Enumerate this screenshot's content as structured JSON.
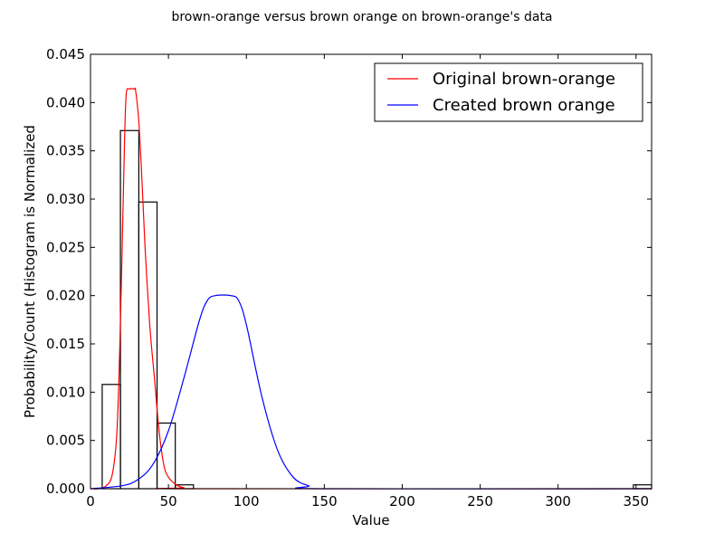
{
  "chart_data": {
    "type": "histogram-with-curves",
    "title": "brown-orange versus brown orange on brown-orange's data",
    "xlabel": "Value",
    "ylabel": "Probability/Count (Histogram is Normalized",
    "xlim": [
      0,
      360
    ],
    "ylim": [
      0,
      0.045
    ],
    "x_ticks": [
      0,
      50,
      100,
      150,
      200,
      250,
      300,
      350
    ],
    "y_ticks": [
      0.0,
      0.005,
      0.01,
      0.015,
      0.02,
      0.025,
      0.03,
      0.035,
      0.04,
      0.045
    ],
    "y_tick_labels": [
      "0.000",
      "0.005",
      "0.010",
      "0.015",
      "0.020",
      "0.025",
      "0.030",
      "0.035",
      "0.040",
      "0.045"
    ],
    "legend_position": "top-right",
    "histogram": {
      "bins": [
        {
          "x0": 7.5,
          "x1": 19.2,
          "value": 0.0108
        },
        {
          "x0": 19.2,
          "x1": 31.0,
          "value": 0.0371
        },
        {
          "x0": 31.0,
          "x1": 42.7,
          "value": 0.0297
        },
        {
          "x0": 42.7,
          "x1": 54.4,
          "value": 0.0068
        },
        {
          "x0": 54.4,
          "x1": 66.1,
          "value": 0.0004
        },
        {
          "x0": 348.3,
          "x1": 360.0,
          "value": 0.0004
        }
      ],
      "edge_color": "#000000"
    },
    "series": [
      {
        "name": "Original brown-orange",
        "color": "#ff0000",
        "points": [
          [
            0,
            0.0
          ],
          [
            5,
            0.0
          ],
          [
            10,
            0.0003
          ],
          [
            14,
            0.0015
          ],
          [
            17,
            0.006
          ],
          [
            19,
            0.016
          ],
          [
            21,
            0.03
          ],
          [
            22,
            0.037
          ],
          [
            23,
            0.041
          ],
          [
            25,
            0.0414
          ],
          [
            28,
            0.0414
          ],
          [
            29,
            0.0412
          ],
          [
            31,
            0.038
          ],
          [
            33,
            0.032
          ],
          [
            35,
            0.025
          ],
          [
            38,
            0.017
          ],
          [
            41,
            0.0115
          ],
          [
            44,
            0.006
          ],
          [
            47,
            0.0025
          ],
          [
            50,
            0.0012
          ],
          [
            55,
            0.0004
          ],
          [
            60,
            0.0001
          ],
          [
            65,
            0.0
          ],
          [
            360,
            0.0
          ]
        ]
      },
      {
        "name": "Created brown orange",
        "color": "#0000ff",
        "points": [
          [
            0,
            0.0
          ],
          [
            20,
            0.0003
          ],
          [
            30,
            0.0009
          ],
          [
            40,
            0.0025
          ],
          [
            50,
            0.006
          ],
          [
            60,
            0.0115
          ],
          [
            70,
            0.0175
          ],
          [
            75,
            0.0195
          ],
          [
            80,
            0.02
          ],
          [
            90,
            0.02
          ],
          [
            95,
            0.0195
          ],
          [
            100,
            0.017
          ],
          [
            110,
            0.0095
          ],
          [
            120,
            0.004
          ],
          [
            130,
            0.0012
          ],
          [
            140,
            0.0003
          ],
          [
            150,
            0.0
          ],
          [
            360,
            0.0
          ]
        ]
      }
    ]
  }
}
